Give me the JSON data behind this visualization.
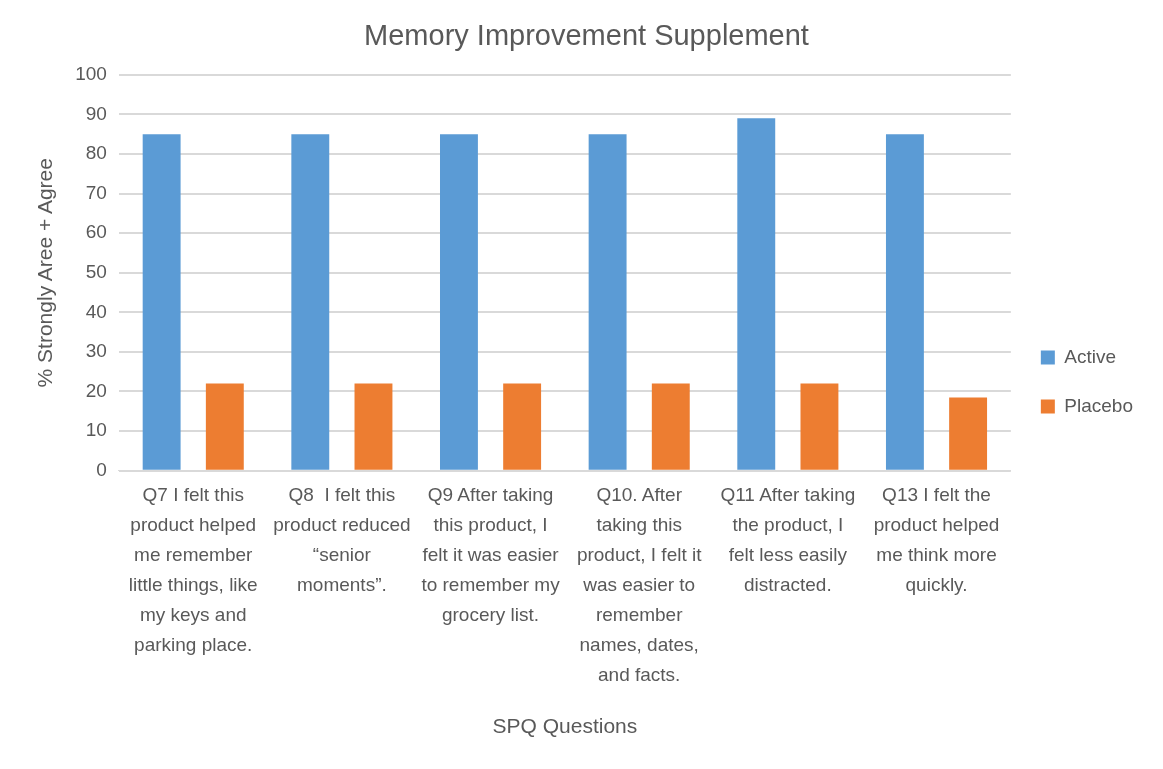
{
  "chart_data": {
    "type": "bar",
    "title": "Memory Improvement Supplement",
    "xlabel": "SPQ Questions",
    "ylabel": "% Strongly Aree + Agree",
    "categories": [
      "Q7 I felt this product helped me remember little things, like my keys and parking place.",
      "Q8  I felt this product reduced “senior moments”.",
      "Q9 After taking this product, I felt it was easier to remember my grocery list.",
      "Q10. After taking this product, I felt it was easier to remember names, dates, and facts.",
      "Q11 After taking the product, I felt less easily distracted.",
      "Q13 I felt the product helped me think more quickly."
    ],
    "series": [
      {
        "name": "Active",
        "color": "#5b9bd5",
        "values": [
          85,
          85,
          85,
          85,
          89,
          85
        ]
      },
      {
        "name": "Placebo",
        "color": "#ed7d31",
        "values": [
          22,
          22,
          22,
          22,
          22,
          18.5
        ]
      }
    ],
    "ylim": [
      0,
      100
    ],
    "yticks": [
      0,
      10,
      20,
      30,
      40,
      50,
      60,
      70,
      80,
      90,
      100
    ],
    "grid": "y",
    "legend": "right"
  }
}
